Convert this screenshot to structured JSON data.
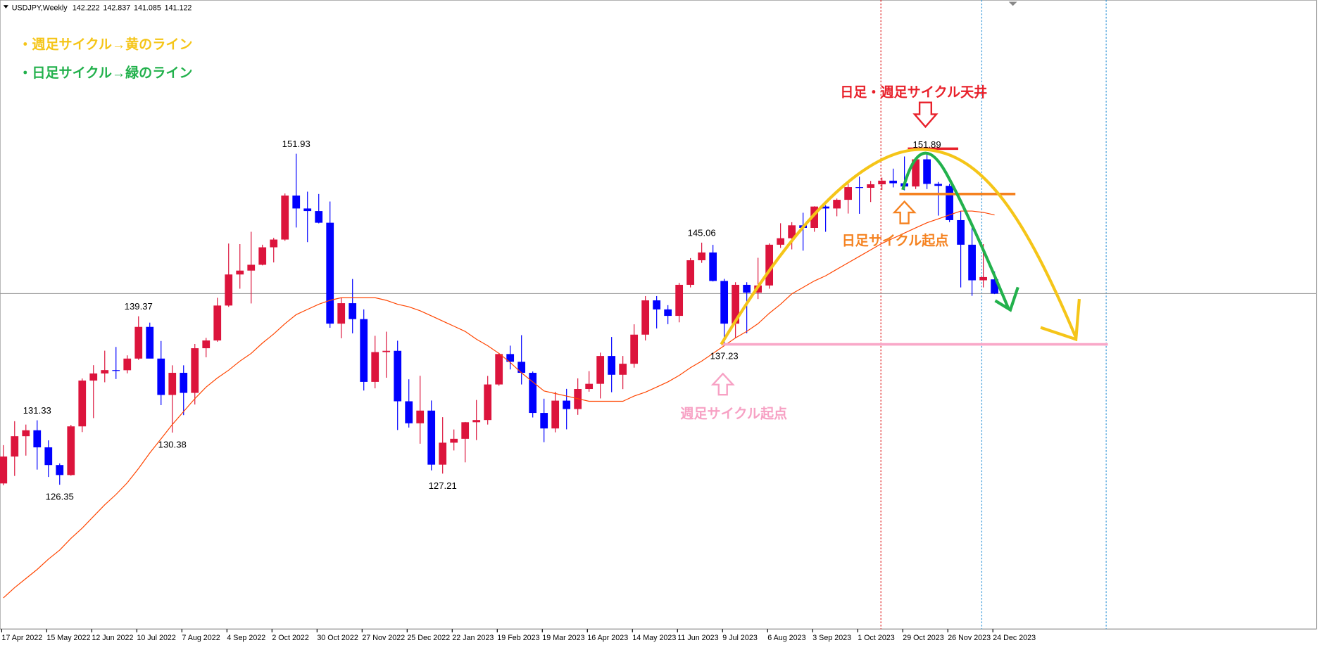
{
  "chart_data": {
    "type": "candlestick",
    "title": "USDJPY,Weekly",
    "x": [
      "17 Apr 2022",
      null,
      null,
      null,
      "15 May 2022",
      null,
      null,
      null,
      "12 Jun 2022",
      null,
      null,
      null,
      "10 Jul 2022",
      null,
      null,
      null,
      "7 Aug 2022",
      null,
      null,
      null,
      "4 Sep 2022",
      null,
      null,
      null,
      "2 Oct 2022",
      null,
      null,
      null,
      "30 Oct 2022",
      null,
      null,
      null,
      "27 Nov 2022",
      null,
      null,
      null,
      "25 Dec 2022",
      null,
      null,
      null,
      "22 Jan 2023",
      null,
      null,
      null,
      "19 Feb 2023",
      null,
      null,
      null,
      "19 Mar 2023",
      null,
      null,
      null,
      "16 Apr 2023",
      null,
      null,
      null,
      "14 May 2023",
      null,
      null,
      null,
      "11 Jun 2023",
      null,
      null,
      null,
      "9 Jul 2023",
      null,
      null,
      null,
      "6 Aug 2023",
      null,
      null,
      null,
      "3 Sep 2023",
      null,
      null,
      null,
      "1 Oct 2023",
      null,
      null,
      null,
      "29 Oct 2023",
      null,
      null,
      null,
      "26 Nov 2023",
      null,
      null,
      null,
      "24 Dec 2023"
    ],
    "open": [
      126.45,
      128.53,
      130.1,
      130.56,
      129.24,
      127.87,
      127.1,
      130.86,
      134.4,
      134.95,
      135.21,
      135.2,
      136.1,
      138.55,
      136.1,
      133.29,
      135.0,
      133.45,
      136.9,
      137.5,
      140.2,
      142.6,
      142.9,
      143.35,
      144.7,
      145.3,
      148.7,
      147.7,
      147.5,
      146.6,
      138.8,
      140.38,
      139.15,
      134.3,
      136.6,
      136.7,
      132.8,
      131.1,
      132.08,
      127.9,
      129.6,
      129.9,
      131.18,
      131.35,
      134.1,
      136.45,
      135.85,
      135.0,
      131.9,
      130.7,
      132.85,
      132.2,
      133.75,
      134.15,
      136.3,
      134.85,
      135.7,
      137.95,
      140.6,
      139.9,
      139.4,
      141.8,
      143.7,
      144.3,
      142.1,
      138.8,
      141.8,
      141.2,
      141.75,
      144.9,
      145.4,
      146.4,
      146.2,
      147.85,
      147.7,
      148.37,
      149.35,
      149.3,
      149.57,
      149.85,
      149.65,
      149.4,
      151.5,
      149.6,
      149.45,
      146.8,
      144.9,
      142.15,
      142.222
    ],
    "high": [
      129.41,
      131.26,
      131.0,
      131.33,
      129.78,
      128.0,
      130.98,
      134.56,
      135.59,
      136.71,
      137.0,
      136.35,
      139.37,
      138.88,
      137.46,
      135.58,
      135.58,
      137.23,
      137.7,
      140.8,
      144.99,
      144.95,
      145.9,
      144.9,
      145.43,
      148.86,
      151.93,
      149.0,
      148.82,
      148.24,
      140.8,
      142.25,
      139.9,
      137.86,
      138.18,
      137.48,
      134.5,
      134.77,
      132.86,
      131.57,
      130.62,
      131.2,
      132.9,
      134.76,
      136.53,
      137.1,
      137.91,
      135.1,
      133.0,
      133.53,
      133.76,
      134.57,
      135.13,
      136.56,
      137.77,
      136.3,
      138.75,
      140.93,
      140.93,
      140.23,
      141.95,
      143.87,
      145.06,
      144.89,
      142.26,
      142.0,
      142.0,
      143.89,
      145.0,
      146.56,
      146.64,
      147.37,
      147.87,
      147.95,
      148.47,
      149.71,
      150.16,
      149.83,
      150.09,
      150.78,
      151.72,
      151.6,
      151.89,
      149.75,
      149.6,
      147.5,
      146.6,
      144.95,
      142.837
    ],
    "low": [
      126.31,
      127.03,
      128.6,
      127.52,
      126.95,
      126.35,
      127.05,
      130.42,
      131.5,
      134.27,
      134.52,
      134.96,
      136.0,
      136.5,
      132.5,
      130.38,
      131.73,
      132.55,
      136.2,
      137.4,
      140.1,
      141.5,
      140.36,
      143.3,
      143.53,
      145.2,
      146.23,
      145.1,
      146.55,
      138.48,
      137.67,
      138.05,
      133.63,
      133.8,
      134.62,
      130.58,
      130.77,
      129.52,
      127.46,
      127.21,
      129.0,
      128.08,
      129.8,
      131.0,
      134.0,
      135.26,
      134.1,
      131.55,
      129.64,
      130.4,
      130.63,
      131.75,
      133.54,
      133.02,
      133.5,
      133.74,
      135.4,
      137.5,
      138.43,
      138.76,
      138.9,
      141.6,
      143.5,
      142.06,
      137.23,
      137.7,
      138.06,
      140.7,
      141.5,
      144.65,
      144.54,
      144.44,
      145.9,
      145.9,
      147.1,
      147.31,
      147.29,
      148.2,
      149.14,
      149.33,
      149.1,
      149.2,
      149.2,
      147.15,
      146.65,
      141.6,
      140.95,
      141.6,
      141.085
    ],
    "close": [
      128.53,
      130.1,
      130.56,
      129.24,
      127.87,
      127.1,
      130.86,
      134.4,
      134.95,
      135.21,
      135.2,
      136.1,
      138.55,
      136.1,
      133.29,
      135.0,
      133.45,
      136.9,
      137.5,
      140.2,
      142.6,
      142.9,
      143.35,
      144.7,
      145.3,
      148.7,
      147.7,
      147.5,
      146.6,
      138.8,
      140.38,
      139.15,
      134.3,
      136.6,
      136.7,
      132.8,
      131.1,
      132.08,
      127.9,
      129.6,
      129.9,
      131.18,
      131.35,
      134.1,
      136.45,
      135.85,
      135.0,
      131.9,
      130.7,
      132.85,
      132.2,
      133.75,
      134.15,
      136.3,
      134.85,
      135.7,
      137.95,
      140.6,
      139.9,
      139.4,
      141.8,
      143.7,
      144.3,
      142.1,
      138.8,
      141.8,
      141.2,
      141.75,
      144.9,
      145.4,
      146.4,
      146.2,
      147.85,
      147.7,
      148.37,
      149.35,
      149.3,
      149.57,
      149.85,
      149.65,
      149.4,
      151.5,
      149.6,
      149.45,
      146.8,
      144.9,
      142.15,
      142.4,
      141.122
    ],
    "ma": {
      "color": "#ff4500",
      "values": [
        117.6,
        118.4,
        119.1,
        119.8,
        120.6,
        121.3,
        122.2,
        123.0,
        123.9,
        124.8,
        125.6,
        126.5,
        127.6,
        128.8,
        129.9,
        131.0,
        132.0,
        133.0,
        133.9,
        134.6,
        135.2,
        135.9,
        136.5,
        137.3,
        138.0,
        138.8,
        139.5,
        139.9,
        140.3,
        140.6,
        140.8,
        140.8,
        140.8,
        140.8,
        140.6,
        140.3,
        140.1,
        139.8,
        139.4,
        139.0,
        138.6,
        138.2,
        137.6,
        137.1,
        136.5,
        135.8,
        135.0,
        134.3,
        133.6,
        133.4,
        133.2,
        133.0,
        132.8,
        132.8,
        132.8,
        132.8,
        133.2,
        133.5,
        133.9,
        134.3,
        134.8,
        135.4,
        135.9,
        136.5,
        137.1,
        137.7,
        138.2,
        138.8,
        139.6,
        140.3,
        141.1,
        141.6,
        142.1,
        142.5,
        143.0,
        143.5,
        144.0,
        144.5,
        145.0,
        145.4,
        145.8,
        146.2,
        146.6,
        146.9,
        147.2,
        147.5,
        147.5,
        147.4,
        147.2
      ]
    },
    "up_color": "#dc143c",
    "down_color": "#0000ff",
    "ylim": [
      115.2,
      163.81
    ],
    "annotations": {
      "weekly_legend": "・週足サイクル→黄のライン",
      "daily_legend": "・日足サイクル→緑のライン",
      "top": "日足・週足サイクル天井",
      "daily_start": "日足サイクル起点",
      "weekly_start": "週足サイクル起点"
    }
  }
}
